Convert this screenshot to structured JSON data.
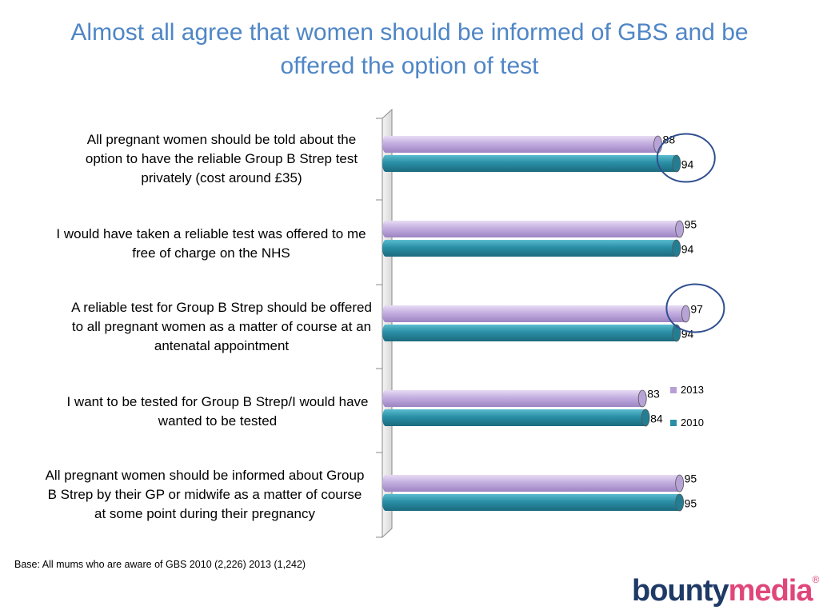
{
  "chart_data": {
    "type": "bar",
    "orientation": "horizontal",
    "title": "Almost all agree that women should be informed of GBS and be offered the option of test",
    "categories": [
      "All pregnant women should be told about the option to have the reliable Group B Strep test privately (cost around £35)",
      "I would have taken a reliable test was offered to me free of charge on the NHS",
      "A reliable test for Group B Strep should be offered to all pregnant women as a matter of course at an antenatal appointment",
      "I want to be tested for Group B Strep/I  would have wanted to be tested",
      "All pregnant women should be informed about Group B Strep by their GP or midwife as a matter of course at some point during their pregnancy"
    ],
    "series": [
      {
        "name": "2013",
        "color": "#c3aee0",
        "values": [
          88,
          95,
          97,
          83,
          95
        ]
      },
      {
        "name": "2010",
        "color": "#2a8fa6",
        "values": [
          94,
          94,
          94,
          84,
          95
        ]
      }
    ],
    "xlim": [
      0,
      100
    ],
    "grid": false,
    "legend_position": "right",
    "highlighted": [
      {
        "category_index": 0,
        "series": "2010"
      },
      {
        "category_index": 2,
        "series": "2013"
      }
    ]
  },
  "footer": {
    "base_note": "Base: All mums who are aware of GBS 2010 (2,226) 2013 (1,242)"
  },
  "logo": {
    "part1": "bounty",
    "part2": "media",
    "mark": "®"
  }
}
